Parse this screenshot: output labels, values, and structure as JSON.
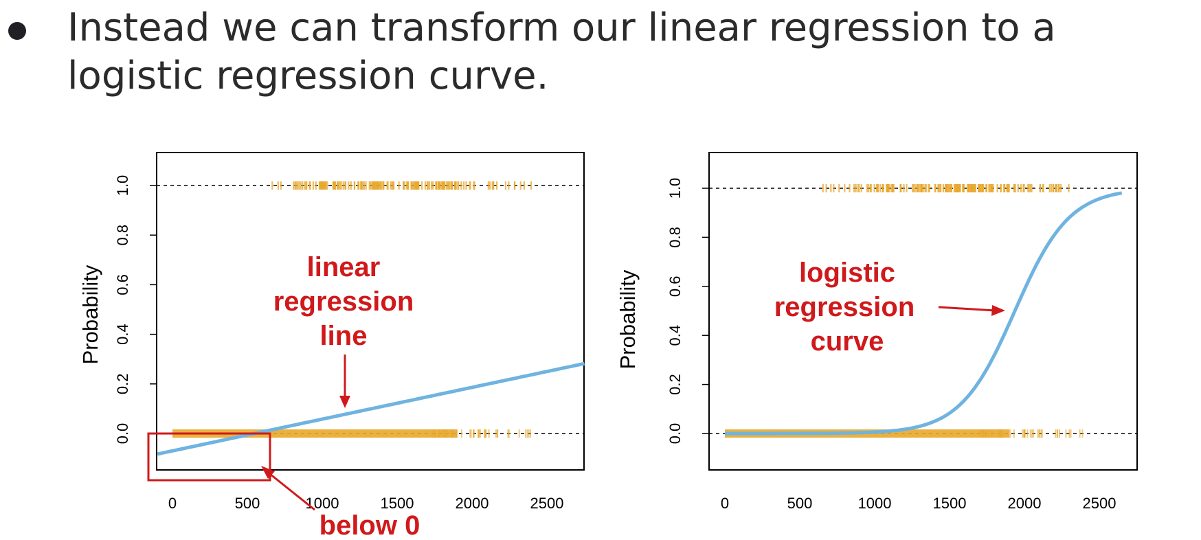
{
  "bullet": {
    "text": "Instead we can transform our linear regression to a logistic regression curve."
  },
  "colors": {
    "curve": "#6fb3e0",
    "points": "#e8a82c",
    "annotation": "#d0191b",
    "frame": "#000000",
    "text": "#2b2b2b"
  },
  "chart_data": [
    {
      "type": "scatter",
      "ylabel": "Probability",
      "xlabel": "",
      "xlim": [
        -100,
        2750
      ],
      "ylim": [
        -0.15,
        1.15
      ],
      "xticks": [
        0,
        500,
        1000,
        1500,
        2000,
        2500
      ],
      "yticks": [
        0.0,
        0.2,
        0.4,
        0.6,
        0.8,
        1.0
      ],
      "reference_lines": [
        0.0,
        1.0
      ],
      "points_class_1": {
        "y": 1.0,
        "x_range": [
          650,
          2400
        ]
      },
      "points_class_0": {
        "y": 0.0,
        "x_range": [
          0,
          2400
        ]
      },
      "fit": {
        "kind": "linear",
        "intercept": -0.07,
        "slope": 0.000128,
        "x_range": [
          -100,
          2750
        ]
      },
      "annotations": [
        "linear",
        "regression",
        "line",
        "below 0"
      ],
      "highlight_box": {
        "x_range": [
          -100,
          650
        ],
        "y_range": [
          -0.15,
          0.0
        ]
      }
    },
    {
      "type": "scatter",
      "ylabel": "Probability",
      "xlabel": "",
      "xlim": [
        -100,
        2750
      ],
      "ylim": [
        -0.15,
        1.15
      ],
      "xticks": [
        0,
        500,
        1000,
        1500,
        2000,
        2500
      ],
      "yticks": [
        0.0,
        0.2,
        0.4,
        0.6,
        0.8,
        1.0
      ],
      "reference_lines": [
        0.0,
        1.0
      ],
      "points_class_1": {
        "y": 1.0,
        "x_range": [
          650,
          2400
        ]
      },
      "points_class_0": {
        "y": 0.0,
        "x_range": [
          0,
          2400
        ]
      },
      "fit": {
        "kind": "logistic",
        "intercept": -10.65,
        "slope": 0.0055,
        "x_range": [
          0,
          2650
        ]
      },
      "annotations": [
        "logistic",
        "regression",
        "curve"
      ]
    }
  ]
}
